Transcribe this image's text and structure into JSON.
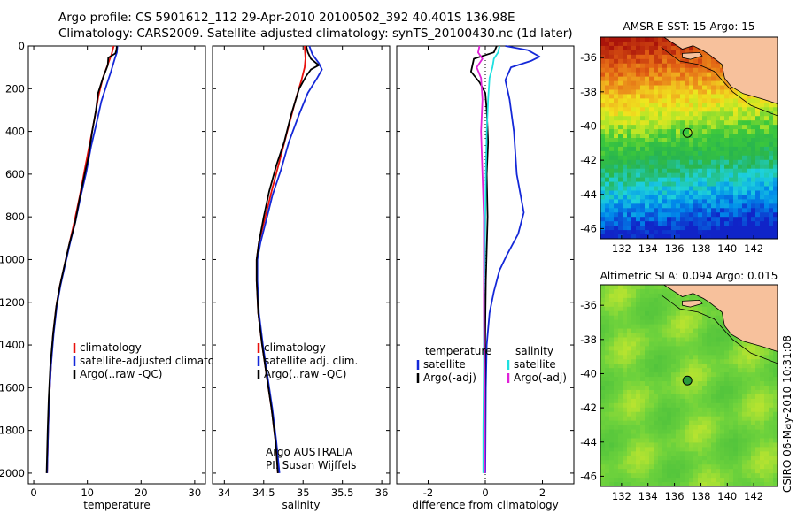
{
  "header": {
    "line1": "Argo profile: CS 5901612_112 29-Apr-2010 20100502_392 40.401S 136.98E",
    "line2": "Climatology: CARS2009. Satellite-adjusted climatology: synTS_20100430.nc (1d later)"
  },
  "colors": {
    "climatology": "#e8100c",
    "satellite": "#1428d8",
    "argo": "#000000",
    "salinity_satellite": "#1ee0e0",
    "salinity_argo": "#e020d8"
  },
  "depth_axis": {
    "ylim": [
      0,
      2050
    ],
    "ticks": [
      0,
      200,
      400,
      600,
      800,
      1000,
      1200,
      1400,
      1600,
      1800,
      2000
    ]
  },
  "chart_data": [
    {
      "type": "line",
      "xlabel": "temperature",
      "xlim": [
        -1,
        32
      ],
      "xticks": [
        0,
        10,
        20,
        30
      ],
      "legend": [
        "climatology",
        "satellite-adjusted climatology",
        "Argo(..raw -QC)"
      ],
      "series": [
        {
          "name": "climatology",
          "color": "#e8100c",
          "points": [
            [
              14.9,
              0
            ],
            [
              14.5,
              40
            ],
            [
              13.9,
              80
            ],
            [
              12.9,
              150
            ],
            [
              12.1,
              230
            ],
            [
              11.4,
              330
            ],
            [
              10.5,
              450
            ],
            [
              9.5,
              580
            ],
            [
              8.6,
              700
            ],
            [
              7.6,
              820
            ],
            [
              6.7,
              920
            ],
            [
              5.8,
              1020
            ],
            [
              4.9,
              1120
            ],
            [
              4.2,
              1220
            ],
            [
              3.6,
              1350
            ],
            [
              3.2,
              1500
            ],
            [
              2.9,
              1650
            ],
            [
              2.7,
              1800
            ],
            [
              2.6,
              1900
            ],
            [
              2.5,
              2000
            ]
          ]
        },
        {
          "name": "satellite-adjusted climatology",
          "color": "#1428d8",
          "points": [
            [
              15.6,
              0
            ],
            [
              15.5,
              30
            ],
            [
              15.1,
              60
            ],
            [
              14.4,
              120
            ],
            [
              13.6,
              180
            ],
            [
              12.6,
              260
            ],
            [
              11.8,
              350
            ],
            [
              10.7,
              470
            ],
            [
              9.8,
              590
            ],
            [
              8.7,
              710
            ],
            [
              7.8,
              820
            ],
            [
              6.8,
              920
            ],
            [
              5.9,
              1020
            ],
            [
              5.0,
              1120
            ],
            [
              4.3,
              1220
            ],
            [
              3.7,
              1350
            ],
            [
              3.2,
              1500
            ],
            [
              2.9,
              1650
            ],
            [
              2.7,
              1800
            ],
            [
              2.6,
              1900
            ],
            [
              2.5,
              2000
            ]
          ]
        },
        {
          "name": "Argo(..raw -QC)",
          "color": "#000000",
          "points": [
            [
              15.5,
              0
            ],
            [
              15.4,
              20
            ],
            [
              15.2,
              35
            ],
            [
              13.9,
              55
            ],
            [
              13.8,
              90
            ],
            [
              12.9,
              150
            ],
            [
              12.0,
              220
            ],
            [
              11.6,
              300
            ],
            [
              10.9,
              400
            ],
            [
              10.2,
              520
            ],
            [
              9.5,
              600
            ],
            [
              8.5,
              720
            ],
            [
              7.7,
              830
            ],
            [
              6.6,
              930
            ],
            [
              5.8,
              1020
            ],
            [
              4.9,
              1120
            ],
            [
              4.2,
              1220
            ],
            [
              3.6,
              1350
            ],
            [
              3.1,
              1500
            ],
            [
              2.8,
              1650
            ],
            [
              2.6,
              1800
            ],
            [
              2.5,
              1900
            ],
            [
              2.4,
              2000
            ]
          ]
        }
      ]
    },
    {
      "type": "line",
      "xlabel": "salinity",
      "xlim": [
        33.85,
        36.1
      ],
      "xticks": [
        34,
        34.5,
        35,
        35.5,
        36
      ],
      "legend": [
        "climatology",
        "satellite adj. clim.",
        "Argo(..raw -QC)"
      ],
      "annotation": [
        "Argo AUSTRALIA",
        "PI: Susan Wijffels"
      ],
      "series": [
        {
          "name": "climatology",
          "color": "#e8100c",
          "points": [
            [
              35.02,
              0
            ],
            [
              35.03,
              60
            ],
            [
              35.02,
              100
            ],
            [
              34.98,
              160
            ],
            [
              34.9,
              260
            ],
            [
              34.8,
              400
            ],
            [
              34.7,
              540
            ],
            [
              34.6,
              680
            ],
            [
              34.52,
              800
            ],
            [
              34.44,
              920
            ],
            [
              34.41,
              1000
            ],
            [
              34.41,
              1100
            ],
            [
              34.43,
              1250
            ],
            [
              34.48,
              1400
            ],
            [
              34.54,
              1550
            ],
            [
              34.6,
              1700
            ],
            [
              34.65,
              1850
            ],
            [
              34.68,
              2000
            ]
          ]
        },
        {
          "name": "satellite adj. clim.",
          "color": "#1428d8",
          "points": [
            [
              35.08,
              0
            ],
            [
              35.12,
              40
            ],
            [
              35.2,
              80
            ],
            [
              35.24,
              110
            ],
            [
              35.18,
              150
            ],
            [
              35.06,
              220
            ],
            [
              34.95,
              320
            ],
            [
              34.82,
              450
            ],
            [
              34.72,
              580
            ],
            [
              34.61,
              700
            ],
            [
              34.53,
              820
            ],
            [
              34.46,
              920
            ],
            [
              34.42,
              1000
            ],
            [
              34.42,
              1100
            ],
            [
              34.44,
              1250
            ],
            [
              34.49,
              1400
            ],
            [
              34.55,
              1550
            ],
            [
              34.61,
              1700
            ],
            [
              34.66,
              1850
            ],
            [
              34.7,
              2000
            ]
          ]
        },
        {
          "name": "Argo(..raw -QC)",
          "color": "#000000",
          "points": [
            [
              35.04,
              0
            ],
            [
              35.06,
              30
            ],
            [
              35.1,
              60
            ],
            [
              35.2,
              90
            ],
            [
              35.1,
              110
            ],
            [
              35.04,
              140
            ],
            [
              34.95,
              200
            ],
            [
              34.85,
              320
            ],
            [
              34.76,
              450
            ],
            [
              34.66,
              560
            ],
            [
              34.57,
              680
            ],
            [
              34.5,
              800
            ],
            [
              34.44,
              920
            ],
            [
              34.41,
              1000
            ],
            [
              34.41,
              1100
            ],
            [
              34.43,
              1250
            ],
            [
              34.48,
              1400
            ],
            [
              34.54,
              1550
            ],
            [
              34.6,
              1700
            ],
            [
              34.65,
              1850
            ],
            [
              34.68,
              2000
            ]
          ]
        }
      ]
    },
    {
      "type": "line",
      "xlabel": "difference from climatology",
      "xlim": [
        -3.1,
        3.1
      ],
      "xticks": [
        -2,
        0,
        2
      ],
      "legend_left_header": "temperature",
      "legend_right_header": "salinity",
      "legend": [
        "satellite",
        "Argo(-adj)",
        "satellite",
        "Argo(-adj)"
      ],
      "series": [
        {
          "name": "temperature satellite",
          "color": "#1428d8",
          "points": [
            [
              0.7,
              0
            ],
            [
              1.5,
              20
            ],
            [
              1.9,
              50
            ],
            [
              1.6,
              70
            ],
            [
              0.9,
              100
            ],
            [
              0.7,
              160
            ],
            [
              0.85,
              250
            ],
            [
              1.0,
              400
            ],
            [
              1.1,
              600
            ],
            [
              1.35,
              780
            ],
            [
              1.15,
              880
            ],
            [
              0.75,
              980
            ],
            [
              0.5,
              1050
            ],
            [
              0.3,
              1150
            ],
            [
              0.15,
              1250
            ],
            [
              0.05,
              1400
            ],
            [
              0.02,
              1600
            ],
            [
              0.01,
              1800
            ],
            [
              0.0,
              2000
            ]
          ]
        },
        {
          "name": "temperature Argo(-adj)",
          "color": "#000000",
          "points": [
            [
              0.4,
              0
            ],
            [
              0.3,
              30
            ],
            [
              -0.4,
              60
            ],
            [
              -0.5,
              120
            ],
            [
              -0.2,
              170
            ],
            [
              0.0,
              220
            ],
            [
              0.05,
              300
            ],
            [
              0.1,
              450
            ],
            [
              0.05,
              600
            ],
            [
              0.08,
              800
            ],
            [
              0.05,
              950
            ],
            [
              0.02,
              1100
            ],
            [
              0.0,
              1300
            ],
            [
              -0.02,
              1600
            ],
            [
              -0.02,
              1800
            ],
            [
              -0.03,
              2000
            ]
          ]
        },
        {
          "name": "salinity satellite",
          "color": "#1ee0e0",
          "points": [
            [
              0.5,
              0
            ],
            [
              0.45,
              30
            ],
            [
              0.3,
              60
            ],
            [
              0.25,
              100
            ],
            [
              0.15,
              150
            ],
            [
              0.1,
              250
            ],
            [
              0.05,
              400
            ],
            [
              0.02,
              600
            ],
            [
              0.0,
              800
            ],
            [
              -0.02,
              1000
            ],
            [
              -0.05,
              1200
            ],
            [
              -0.05,
              1500
            ],
            [
              -0.07,
              1800
            ],
            [
              -0.07,
              2000
            ]
          ]
        },
        {
          "name": "salinity Argo(-adj)",
          "color": "#e020d8",
          "points": [
            [
              -0.2,
              0
            ],
            [
              -0.25,
              30
            ],
            [
              -0.1,
              60
            ],
            [
              -0.3,
              100
            ],
            [
              -0.15,
              150
            ],
            [
              -0.1,
              250
            ],
            [
              -0.15,
              400
            ],
            [
              -0.1,
              600
            ],
            [
              -0.05,
              800
            ],
            [
              -0.05,
              1000
            ],
            [
              -0.05,
              1200
            ],
            [
              -0.03,
              1500
            ],
            [
              -0.02,
              1800
            ],
            [
              -0.02,
              2000
            ]
          ]
        }
      ]
    },
    {
      "type": "heatmap",
      "title": "AMSR-E SST: 15 Argo: 15",
      "xticks": [
        "132",
        "134",
        "136",
        "138",
        "140",
        "142"
      ],
      "yticks": [
        "-36",
        "-38",
        "-40",
        "-42",
        "-44",
        "-46"
      ],
      "argo_position": {
        "lon": 136.98,
        "lat": -40.401
      }
    },
    {
      "type": "heatmap",
      "title": "Altimetric SLA: 0.094 Argo: 0.015",
      "xticks": [
        "132",
        "134",
        "136",
        "138",
        "140",
        "142"
      ],
      "yticks": [
        "-36",
        "-38",
        "-40",
        "-42",
        "-44",
        "-46"
      ],
      "argo_position": {
        "lon": 136.98,
        "lat": -40.401
      }
    }
  ],
  "footer": {
    "stamp": "CSIRO 06-May-2010 10:31:08"
  }
}
